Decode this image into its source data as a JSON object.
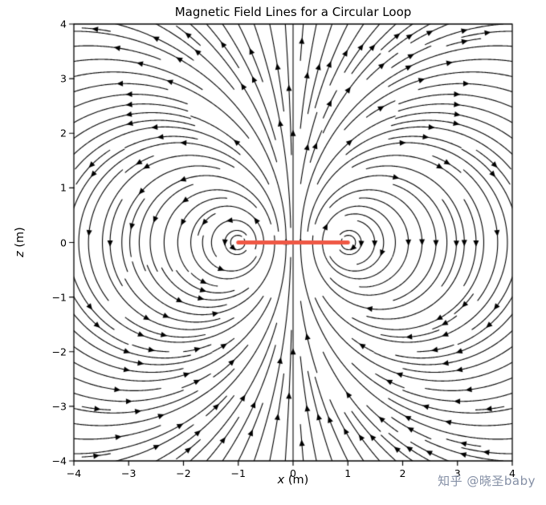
{
  "watermark": {
    "text": "知乎 @晓圣baby",
    "color": "#8590a6"
  },
  "chart_data": {
    "type": "streamline",
    "title": "Magnetic Field Lines for a Circular Loop",
    "xlabel": "x (m)",
    "xlabel_var": "x",
    "xlabel_unit": "(m)",
    "ylabel": "z (m)",
    "ylabel_var": "z",
    "ylabel_unit": "(m)",
    "xlim": [
      -4,
      4
    ],
    "ylim": [
      -4,
      4
    ],
    "xticks": [
      -4,
      -3,
      -2,
      -1,
      0,
      1,
      2,
      3,
      4
    ],
    "xtick_labels": [
      "−4",
      "−3",
      "−2",
      "−1",
      "0",
      "1",
      "2",
      "3",
      "4"
    ],
    "yticks": [
      -4,
      -3,
      -2,
      -1,
      0,
      1,
      2,
      3,
      4
    ],
    "ytick_labels": [
      "−4",
      "−3",
      "−2",
      "−1",
      "0",
      "1",
      "2",
      "3",
      "4"
    ],
    "grid": false,
    "stream": {
      "color": "#000000",
      "linewidth": 1.1,
      "density": 2,
      "arrow_size": 7,
      "model": "in-plane dipole field of a circular current loop of radius 1 m; field circulates about the loop cross-sections",
      "wires": [
        {
          "x": 1.0,
          "z": 0.0,
          "current": 1
        },
        {
          "x": -1.0,
          "z": 0.0,
          "current": -1
        }
      ]
    },
    "loop_marker": {
      "from": [
        -1,
        0
      ],
      "to": [
        1,
        0
      ],
      "color": "#ef5845",
      "linewidth": 5
    }
  }
}
